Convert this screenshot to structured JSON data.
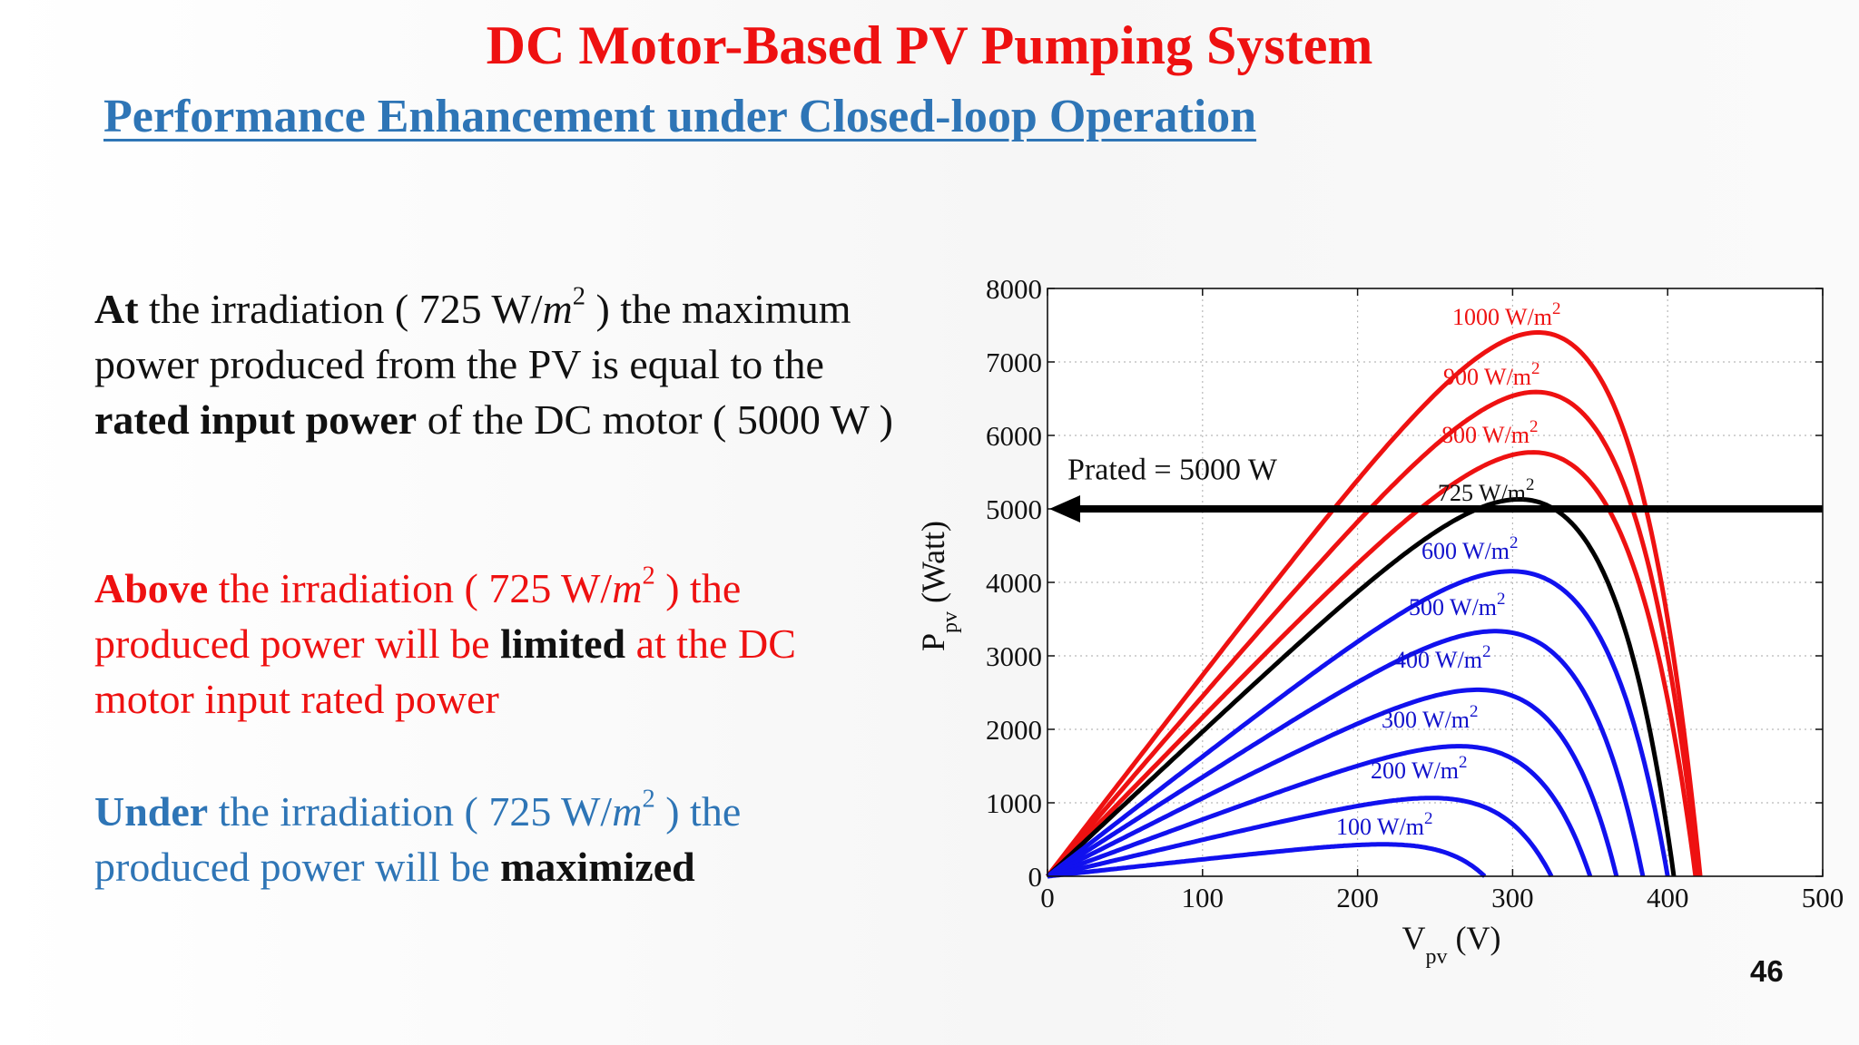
{
  "slide": {
    "title": "DC Motor-Based PV Pumping System",
    "subtitle": "Performance Enhancement under Closed-loop Operation",
    "page_number": "46",
    "colors": {
      "title": "#ee1111",
      "subtitle": "#2e75b6",
      "red": "#ee1111",
      "blue": "#2e75b6"
    },
    "para1": {
      "t1": "At",
      "t2": " the irradiation ( 725 W/",
      "m": "m",
      "sup": "2",
      "t3": " ) the maximum power produced from the PV is equal to the ",
      "t4": "rated input power",
      "t5": " of the DC motor ( 5000 W )"
    },
    "para2": {
      "t1": "Above",
      "t2": " the irradiation ( 725 W/",
      "m": "m",
      "sup": "2",
      "t3": " ) the produced power will be ",
      "t4": "limited",
      "t5": " at the DC motor input rated power"
    },
    "para3": {
      "t1": "Under",
      "t2": " the irradiation ( 725 W/",
      "m": "m",
      "sup": "2",
      "t3": " ) the produced power will be ",
      "t4": "maximized"
    }
  },
  "chart_data": {
    "type": "line",
    "xlabel": "V",
    "xlabel_sub": "pv",
    "xlabel_unit": " (V)",
    "ylabel": "P",
    "ylabel_sub": "pv",
    "ylabel_unit": " (Watt)",
    "xlim": [
      0,
      500
    ],
    "ylim": [
      0,
      8000
    ],
    "xticks": [
      0,
      100,
      200,
      300,
      400,
      500
    ],
    "yticks": [
      0,
      1000,
      2000,
      3000,
      4000,
      5000,
      6000,
      7000,
      8000
    ],
    "grid": true,
    "annotation": {
      "text": "Prated = 5000 W",
      "y": 5000,
      "arrow": "left",
      "color": "#000000"
    },
    "series": [
      {
        "name": "1000 W/m",
        "sup": "2",
        "color": "#ee1111",
        "peak_v": 290,
        "peak_p": 7230,
        "voc": 421
      },
      {
        "name": "900 W/m",
        "sup": "2",
        "color": "#ee1111",
        "peak_v": 288,
        "peak_p": 6430,
        "voc": 420
      },
      {
        "name": "800 W/m",
        "sup": "2",
        "color": "#ee1111",
        "peak_v": 285,
        "peak_p": 5620,
        "voc": 418
      },
      {
        "name": "725 W/m",
        "sup": "2",
        "color": "#000000",
        "peak_v": 280,
        "peak_p": 5020,
        "voc": 404
      },
      {
        "name": "600 W/m",
        "sup": "2",
        "color": "#1111ee",
        "peak_v": 272,
        "peak_p": 4040,
        "voc": 400
      },
      {
        "name": "500 W/m",
        "sup": "2",
        "color": "#1111ee",
        "peak_v": 265,
        "peak_p": 3260,
        "voc": 384
      },
      {
        "name": "400 W/m",
        "sup": "2",
        "color": "#1111ee",
        "peak_v": 257,
        "peak_p": 2490,
        "voc": 367
      },
      {
        "name": "300 W/m",
        "sup": "2",
        "color": "#1111ee",
        "peak_v": 247,
        "peak_p": 1740,
        "voc": 350
      },
      {
        "name": "200 W/m",
        "sup": "2",
        "color": "#1111ee",
        "peak_v": 232,
        "peak_p": 1050,
        "voc": 325
      },
      {
        "name": "100 W/m",
        "sup": "2",
        "color": "#1111ee",
        "peak_v": 205,
        "peak_p": 430,
        "voc": 282
      }
    ]
  }
}
